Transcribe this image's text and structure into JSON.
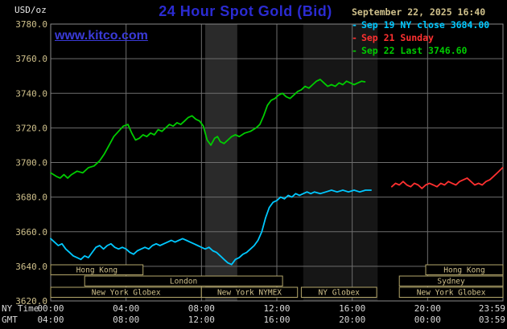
{
  "header": {
    "unit_label": "USD/oz",
    "title": "24 Hour Spot Gold (Bid)",
    "timestamp": "September 22, 2025 16:40"
  },
  "watermark": {
    "label": "www.kitco.com"
  },
  "legend": {
    "items": [
      {
        "label": "Sep 19 NY close 3684.00",
        "color": "#00c8ff"
      },
      {
        "label": "Sep 21 Sunday",
        "color": "#ff3030"
      },
      {
        "label": "Sep 22 Last 3746.60",
        "color": "#00cc00"
      }
    ]
  },
  "colors": {
    "background": "#000000",
    "title_blue": "#2b2bd2",
    "watermark_blue": "#3a3ad8",
    "khaki_text": "#cfc08b"
  },
  "chart_data": {
    "type": "line",
    "title": "24 Hour Spot Gold (Bid)",
    "ylabel": "USD/oz",
    "ylim": [
      3620,
      3780
    ],
    "grid": true,
    "colors": {
      "grid": "#6e6e6e",
      "border": "#8a8a8a",
      "axis_text": "#d9d9d9",
      "price_text": "#cfc08b",
      "session": "#b5a76b"
    },
    "y_ticks": [
      {
        "value": 3780,
        "label": "3780.0"
      },
      {
        "value": 3760,
        "label": "3760.0"
      },
      {
        "value": 3740,
        "label": "3740.0"
      },
      {
        "value": 3720,
        "label": "3720.0"
      },
      {
        "value": 3700,
        "label": "3700.0"
      },
      {
        "value": 3680,
        "label": "3680.0"
      },
      {
        "value": 3660,
        "label": "3660.0"
      },
      {
        "value": 3640,
        "label": "3640.0"
      },
      {
        "value": 3620,
        "label": "3620.0"
      }
    ],
    "x_axis": {
      "label_primary": "NY Time",
      "label_secondary": "GMT",
      "ticks": [
        {
          "t": 0,
          "ny": "00:00",
          "gmt": "04:00"
        },
        {
          "t": 4,
          "ny": "04:00",
          "gmt": "08:00"
        },
        {
          "t": 8,
          "ny": "08:00",
          "gmt": "12:00"
        },
        {
          "t": 12,
          "ny": "12:00",
          "gmt": "16:00"
        },
        {
          "t": 16,
          "ny": "16:00",
          "gmt": "20:00"
        },
        {
          "t": 20,
          "ny": "20:00",
          "gmt": "00:00"
        },
        {
          "t": 23.983,
          "ny": "23:59",
          "gmt": "03:59"
        }
      ]
    },
    "bands": [
      {
        "start": 8.2,
        "end": 9.9,
        "color": "#2a2a2a"
      },
      {
        "start": 13.4,
        "end": 17.35,
        "color": "#161616"
      }
    ],
    "series": [
      {
        "name": "Sep 19 NY close",
        "close": 3684.0,
        "color": "#00c8ff",
        "points": [
          [
            0.0,
            3656
          ],
          [
            0.2,
            3654
          ],
          [
            0.4,
            3652
          ],
          [
            0.6,
            3653
          ],
          [
            0.8,
            3650
          ],
          [
            1.0,
            3648
          ],
          [
            1.2,
            3646
          ],
          [
            1.4,
            3645
          ],
          [
            1.6,
            3644
          ],
          [
            1.8,
            3646
          ],
          [
            2.0,
            3645
          ],
          [
            2.2,
            3648
          ],
          [
            2.4,
            3651
          ],
          [
            2.6,
            3652
          ],
          [
            2.8,
            3650
          ],
          [
            3.0,
            3652
          ],
          [
            3.2,
            3653
          ],
          [
            3.4,
            3651
          ],
          [
            3.6,
            3650
          ],
          [
            3.8,
            3651
          ],
          [
            4.0,
            3650
          ],
          [
            4.2,
            3648
          ],
          [
            4.4,
            3647
          ],
          [
            4.6,
            3649
          ],
          [
            4.8,
            3650
          ],
          [
            5.0,
            3651
          ],
          [
            5.2,
            3650
          ],
          [
            5.4,
            3652
          ],
          [
            5.6,
            3653
          ],
          [
            5.8,
            3652
          ],
          [
            6.0,
            3653
          ],
          [
            6.2,
            3654
          ],
          [
            6.4,
            3655
          ],
          [
            6.6,
            3654
          ],
          [
            6.8,
            3655
          ],
          [
            7.0,
            3656
          ],
          [
            7.2,
            3655
          ],
          [
            7.4,
            3654
          ],
          [
            7.6,
            3653
          ],
          [
            7.8,
            3652
          ],
          [
            8.0,
            3651
          ],
          [
            8.2,
            3650
          ],
          [
            8.4,
            3651
          ],
          [
            8.6,
            3649
          ],
          [
            8.8,
            3648
          ],
          [
            9.0,
            3646
          ],
          [
            9.2,
            3644
          ],
          [
            9.4,
            3642
          ],
          [
            9.6,
            3641
          ],
          [
            9.8,
            3644
          ],
          [
            10.0,
            3645
          ],
          [
            10.2,
            3647
          ],
          [
            10.4,
            3648
          ],
          [
            10.6,
            3650
          ],
          [
            10.8,
            3652
          ],
          [
            11.0,
            3655
          ],
          [
            11.2,
            3660
          ],
          [
            11.4,
            3668
          ],
          [
            11.6,
            3674
          ],
          [
            11.8,
            3677
          ],
          [
            12.0,
            3678
          ],
          [
            12.2,
            3680
          ],
          [
            12.4,
            3679
          ],
          [
            12.6,
            3681
          ],
          [
            12.8,
            3680
          ],
          [
            13.0,
            3682
          ],
          [
            13.2,
            3681
          ],
          [
            13.4,
            3682
          ],
          [
            13.6,
            3683
          ],
          [
            13.8,
            3682
          ],
          [
            14.0,
            3683
          ],
          [
            14.3,
            3682
          ],
          [
            14.6,
            3683
          ],
          [
            14.9,
            3684
          ],
          [
            15.2,
            3683
          ],
          [
            15.5,
            3684
          ],
          [
            15.8,
            3683
          ],
          [
            16.1,
            3684
          ],
          [
            16.4,
            3683
          ],
          [
            16.7,
            3684
          ],
          [
            17.0,
            3684
          ]
        ]
      },
      {
        "name": "Sep 21 Sunday",
        "color": "#ff3030",
        "points": [
          [
            18.1,
            3686
          ],
          [
            18.3,
            3688
          ],
          [
            18.5,
            3687
          ],
          [
            18.7,
            3689
          ],
          [
            18.9,
            3687
          ],
          [
            19.1,
            3686
          ],
          [
            19.3,
            3688
          ],
          [
            19.5,
            3687
          ],
          [
            19.7,
            3685
          ],
          [
            19.9,
            3687
          ],
          [
            20.1,
            3688
          ],
          [
            20.3,
            3687
          ],
          [
            20.5,
            3686
          ],
          [
            20.7,
            3688
          ],
          [
            20.9,
            3687
          ],
          [
            21.1,
            3689
          ],
          [
            21.3,
            3688
          ],
          [
            21.5,
            3687
          ],
          [
            21.7,
            3689
          ],
          [
            21.9,
            3690
          ],
          [
            22.1,
            3691
          ],
          [
            22.3,
            3689
          ],
          [
            22.5,
            3687
          ],
          [
            22.7,
            3688
          ],
          [
            22.9,
            3687
          ],
          [
            23.1,
            3689
          ],
          [
            23.3,
            3690
          ],
          [
            23.5,
            3692
          ],
          [
            23.7,
            3694
          ],
          [
            23.98,
            3697
          ]
        ]
      },
      {
        "name": "Sep 22 Last",
        "last": 3746.6,
        "color": "#00cc00",
        "points": [
          [
            0.0,
            3694
          ],
          [
            0.3,
            3692
          ],
          [
            0.5,
            3691
          ],
          [
            0.7,
            3693
          ],
          [
            0.9,
            3691
          ],
          [
            1.1,
            3693
          ],
          [
            1.4,
            3695
          ],
          [
            1.7,
            3694
          ],
          [
            2.0,
            3697
          ],
          [
            2.3,
            3698
          ],
          [
            2.6,
            3701
          ],
          [
            2.85,
            3705
          ],
          [
            3.1,
            3710
          ],
          [
            3.35,
            3715
          ],
          [
            3.6,
            3718
          ],
          [
            3.85,
            3721
          ],
          [
            4.1,
            3722
          ],
          [
            4.3,
            3717
          ],
          [
            4.5,
            3713
          ],
          [
            4.7,
            3714
          ],
          [
            4.9,
            3716
          ],
          [
            5.1,
            3715
          ],
          [
            5.3,
            3717
          ],
          [
            5.5,
            3716
          ],
          [
            5.7,
            3719
          ],
          [
            5.9,
            3718
          ],
          [
            6.1,
            3720
          ],
          [
            6.3,
            3722
          ],
          [
            6.5,
            3721
          ],
          [
            6.7,
            3723
          ],
          [
            6.9,
            3722
          ],
          [
            7.1,
            3724
          ],
          [
            7.3,
            3726
          ],
          [
            7.5,
            3727
          ],
          [
            7.7,
            3725
          ],
          [
            7.9,
            3724
          ],
          [
            8.1,
            3721
          ],
          [
            8.3,
            3713
          ],
          [
            8.5,
            3710
          ],
          [
            8.7,
            3714
          ],
          [
            8.85,
            3715
          ],
          [
            9.0,
            3712
          ],
          [
            9.2,
            3711
          ],
          [
            9.4,
            3713
          ],
          [
            9.6,
            3715
          ],
          [
            9.8,
            3716
          ],
          [
            10.0,
            3715
          ],
          [
            10.3,
            3717
          ],
          [
            10.6,
            3718
          ],
          [
            10.9,
            3720
          ],
          [
            11.1,
            3722
          ],
          [
            11.3,
            3727
          ],
          [
            11.5,
            3733
          ],
          [
            11.7,
            3736
          ],
          [
            11.9,
            3737
          ],
          [
            12.1,
            3739
          ],
          [
            12.3,
            3740
          ],
          [
            12.5,
            3738
          ],
          [
            12.7,
            3737
          ],
          [
            12.9,
            3739
          ],
          [
            13.1,
            3741
          ],
          [
            13.3,
            3742
          ],
          [
            13.5,
            3744
          ],
          [
            13.7,
            3743
          ],
          [
            13.9,
            3745
          ],
          [
            14.1,
            3747
          ],
          [
            14.3,
            3748
          ],
          [
            14.5,
            3746
          ],
          [
            14.7,
            3744
          ],
          [
            14.9,
            3745
          ],
          [
            15.1,
            3744
          ],
          [
            15.3,
            3746
          ],
          [
            15.5,
            3745
          ],
          [
            15.7,
            3747
          ],
          [
            15.9,
            3746
          ],
          [
            16.1,
            3745
          ],
          [
            16.3,
            3746
          ],
          [
            16.5,
            3747
          ],
          [
            16.67,
            3746.6
          ]
        ]
      }
    ],
    "sessions": [
      {
        "row": 0,
        "start": 0,
        "end": 4.9,
        "label": "Hong Kong"
      },
      {
        "row": 0,
        "start": 19.9,
        "end": 24,
        "label": "Hong Kong"
      },
      {
        "row": 1,
        "start": 1.8,
        "end": 12.3,
        "label": "London"
      },
      {
        "row": 1,
        "start": 18.5,
        "end": 24,
        "label": "Sydney"
      },
      {
        "row": 2,
        "start": 0,
        "end": 8.0,
        "label": "New York Globex"
      },
      {
        "row": 2,
        "start": 8.0,
        "end": 13.1,
        "label": "New York NYMEX"
      },
      {
        "row": 2,
        "start": 13.3,
        "end": 17.3,
        "label": "NY Globex"
      },
      {
        "row": 2,
        "start": 18.5,
        "end": 24,
        "label": "New York Globex"
      }
    ]
  }
}
